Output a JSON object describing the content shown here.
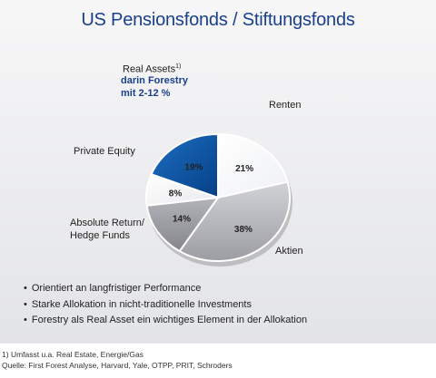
{
  "title": "US Pensionsfonds / Stiftungsfonds",
  "chart_data": {
    "type": "pie",
    "title": "US Pensionsfonds / Stiftungsfonds",
    "slices": [
      {
        "label": "Renten",
        "value": 21,
        "value_label": "21%",
        "color": "#ffffff"
      },
      {
        "label": "Aktien",
        "value": 38,
        "value_label": "38%",
        "color": "#bfc0c5"
      },
      {
        "label": "Absolute Return/ Hedge Funds",
        "value": 14,
        "value_label": "14%",
        "color": "#9fa0a6"
      },
      {
        "label": "Private Equity",
        "value": 8,
        "value_label": "8%",
        "color": "#ffffff"
      },
      {
        "label": "Real Assets",
        "value": 19,
        "value_label": "19%",
        "color": "#0a55a8"
      }
    ],
    "real_assets_footnote_mark": "1)",
    "real_assets_sublabel": [
      "darin Forestry",
      "mit 2-12 %"
    ]
  },
  "labels": {
    "renten": "Renten",
    "aktien": "Aktien",
    "absolute_line1": "Absolute Return/",
    "absolute_line2": "Hedge Funds",
    "private_equity": "Private Equity",
    "real_assets": "Real Assets",
    "footnote_mark": "1)",
    "forestry_line1": "darin Forestry",
    "forestry_line2": "mit 2-12 %"
  },
  "bullets": [
    "Orientiert an langfristiger Performance",
    "Starke Allokation in nicht-traditionelle Investments",
    "Forestry als Real Asset ein wichtiges Element in der Allokation"
  ],
  "footnotes": {
    "mark": "1)",
    "note": "Umfasst u.a. Real Estate, Energie/Gas",
    "source": "Quelle: First Forest Analyse, Harvard, Yale, OTPP, PRIT, Schroders"
  },
  "colors": {
    "title": "#1a3f8c",
    "accent": "#0a55a8"
  }
}
